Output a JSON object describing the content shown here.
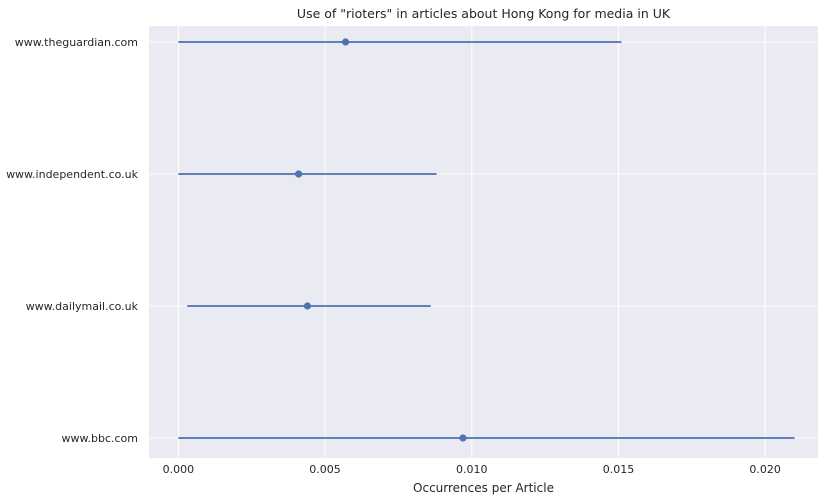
{
  "chart_data": {
    "type": "errorbar",
    "title": "Use of \"rioters\" in articles about Hong Kong for media in UK",
    "xlabel": "Occurrences per Article",
    "ylabel": "",
    "xlim": [
      -0.001,
      0.0218
    ],
    "xticks": [
      0.0,
      0.005,
      0.01,
      0.015,
      0.02
    ],
    "xtick_labels": [
      "0.000",
      "0.005",
      "0.010",
      "0.015",
      "0.020"
    ],
    "grid": true,
    "colors": {
      "marker": "#4c72b0",
      "background": "#eaeaf2",
      "grid": "#ffffff"
    },
    "categories": [
      "www.theguardian.com",
      "www.independent.co.uk",
      "www.dailymail.co.uk",
      "www.bbc.com"
    ],
    "points": [
      {
        "category": "www.theguardian.com",
        "value": 0.0057,
        "low": 0.0,
        "high": 0.0151
      },
      {
        "category": "www.independent.co.uk",
        "value": 0.0041,
        "low": 0.0,
        "high": 0.0088
      },
      {
        "category": "www.dailymail.co.uk",
        "value": 0.0044,
        "low": 0.0003,
        "high": 0.0086
      },
      {
        "category": "www.bbc.com",
        "value": 0.0097,
        "low": 0.0,
        "high": 0.021
      }
    ]
  }
}
